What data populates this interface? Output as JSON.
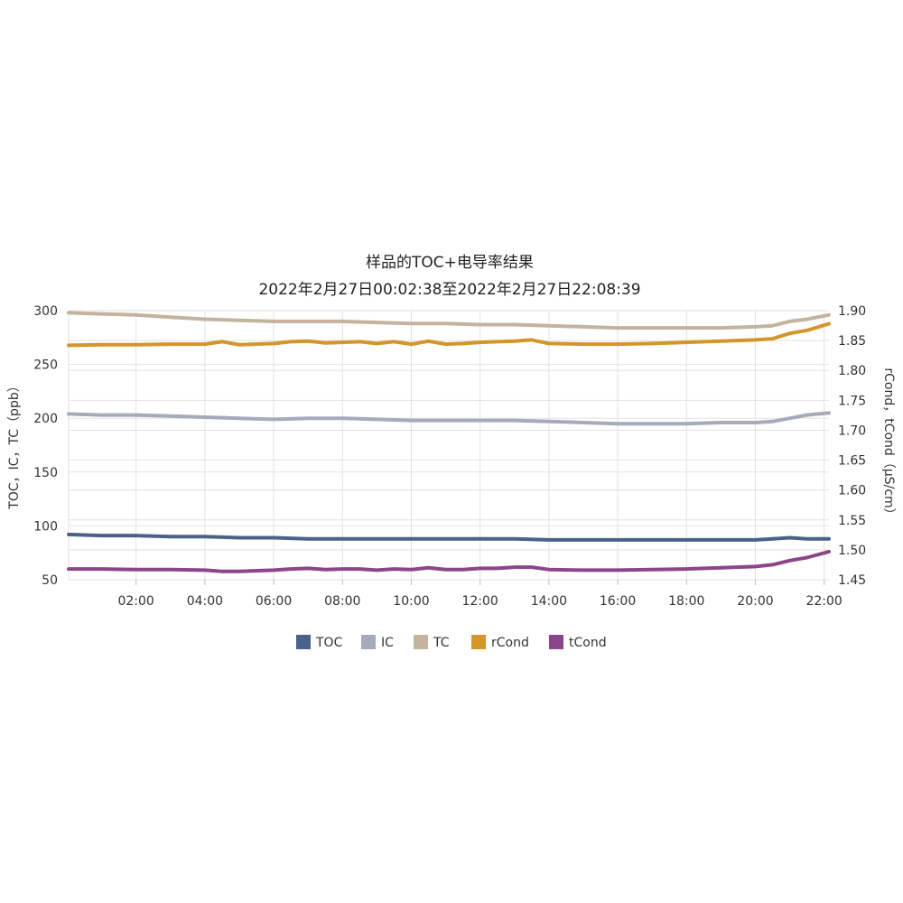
{
  "chart_data": {
    "type": "line",
    "title": "样品的TOC+电导率结果",
    "subtitle": "2022年2月27日00:02:38至2022年2月27日22:08:39",
    "ylabel": "TOC，IC，TC（ppb）",
    "y2label": "rCond，tCond（μS/cm）",
    "x_ticks": [
      "02:00",
      "04:00",
      "06:00",
      "08:00",
      "10:00",
      "12:00",
      "14:00",
      "16:00",
      "18:00",
      "20:00",
      "22:00"
    ],
    "y_ticks": [
      "300",
      "250",
      "200",
      "150",
      "100",
      "50"
    ],
    "y2_ticks": [
      "1.90",
      "1.85",
      "1.80",
      "1.75",
      "1.70",
      "1.65",
      "1.60",
      "1.55",
      "1.50",
      "1.45"
    ],
    "ylim": [
      50,
      300
    ],
    "y2lim": [
      1.45,
      1.9
    ],
    "x_unit": "hours",
    "xlim": [
      0.04,
      22.14
    ],
    "grid": true,
    "legend_position": "bottom",
    "series": [
      {
        "name": "TOC",
        "axis": "left",
        "color": "#4a6188",
        "x": [
          0.04,
          1,
          2,
          3,
          4,
          5,
          6,
          7,
          8,
          9,
          10,
          11,
          12,
          13,
          14,
          15,
          16,
          17,
          18,
          19,
          20,
          20.5,
          21,
          21.5,
          22.14
        ],
        "values": [
          92,
          91,
          91,
          90,
          90,
          89,
          89,
          88,
          88,
          88,
          88,
          88,
          88,
          88,
          87,
          87,
          87,
          87,
          87,
          87,
          87,
          88,
          89,
          88,
          88
        ]
      },
      {
        "name": "IC",
        "axis": "left",
        "color": "#a6abbb",
        "x": [
          0.04,
          1,
          2,
          3,
          4,
          5,
          6,
          7,
          8,
          9,
          10,
          11,
          12,
          13,
          14,
          15,
          16,
          17,
          18,
          19,
          20,
          20.5,
          21,
          21.5,
          22.14
        ],
        "values": [
          204,
          203,
          203,
          202,
          201,
          200,
          199,
          200,
          200,
          199,
          198,
          198,
          198,
          198,
          197,
          196,
          195,
          195,
          195,
          196,
          196,
          197,
          200,
          203,
          205
        ]
      },
      {
        "name": "TC",
        "axis": "left",
        "color": "#c4b39e",
        "x": [
          0.04,
          1,
          2,
          3,
          4,
          5,
          6,
          7,
          8,
          9,
          10,
          11,
          12,
          13,
          14,
          15,
          16,
          17,
          18,
          19,
          20,
          20.5,
          21,
          21.5,
          22.14
        ],
        "values": [
          298,
          297,
          296,
          294,
          292,
          291,
          290,
          290,
          290,
          289,
          288,
          288,
          287,
          287,
          286,
          285,
          284,
          284,
          284,
          284,
          285,
          286,
          290,
          292,
          296
        ]
      },
      {
        "name": "rCond",
        "axis": "right",
        "color": "#d4952a",
        "x": [
          0.04,
          1,
          2,
          3,
          4,
          4.5,
          5,
          6,
          6.5,
          7,
          7.5,
          8,
          8.5,
          9,
          9.5,
          10,
          10.5,
          11,
          11.5,
          12,
          12.5,
          13,
          13.5,
          14,
          15,
          16,
          17,
          18,
          19,
          20,
          20.5,
          21,
          21.5,
          22.14
        ],
        "values": [
          1.842,
          1.843,
          1.843,
          1.844,
          1.844,
          1.848,
          1.843,
          1.845,
          1.848,
          1.849,
          1.846,
          1.847,
          1.848,
          1.845,
          1.848,
          1.844,
          1.849,
          1.844,
          1.845,
          1.847,
          1.848,
          1.849,
          1.851,
          1.845,
          1.844,
          1.844,
          1.845,
          1.847,
          1.849,
          1.851,
          1.853,
          1.862,
          1.867,
          1.878
        ]
      },
      {
        "name": "tCond",
        "axis": "right",
        "color": "#8b468a",
        "x": [
          0.04,
          1,
          2,
          3,
          4,
          4.5,
          5,
          6,
          6.5,
          7,
          7.5,
          8,
          8.5,
          9,
          9.5,
          10,
          10.5,
          11,
          11.5,
          12,
          12.5,
          13,
          13.5,
          14,
          15,
          16,
          17,
          18,
          19,
          20,
          20.5,
          21,
          21.5,
          22.14
        ],
        "values": [
          1.468,
          1.468,
          1.467,
          1.467,
          1.466,
          1.464,
          1.464,
          1.466,
          1.468,
          1.469,
          1.467,
          1.468,
          1.468,
          1.466,
          1.468,
          1.467,
          1.47,
          1.467,
          1.467,
          1.469,
          1.469,
          1.471,
          1.471,
          1.467,
          1.466,
          1.466,
          1.467,
          1.468,
          1.47,
          1.472,
          1.475,
          1.482,
          1.487,
          1.497
        ]
      }
    ]
  }
}
